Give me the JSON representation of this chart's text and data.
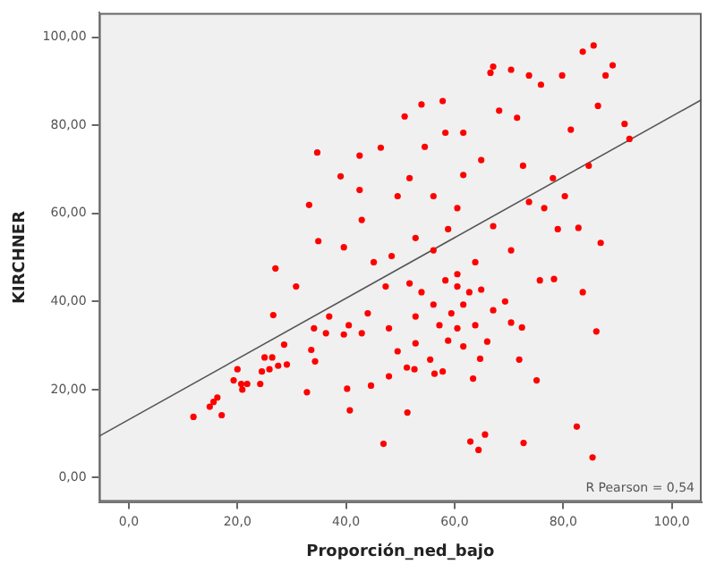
{
  "chart_data": {
    "type": "scatter",
    "xlabel": "Proporción_ned_bajo",
    "ylabel": "KIRCHNER",
    "xlim": [
      -5.5,
      105.5
    ],
    "ylim": [
      -5.5,
      105.5
    ],
    "xticks": [
      {
        "value": 0,
        "label": "0,0"
      },
      {
        "value": 20,
        "label": "20,0"
      },
      {
        "value": 40,
        "label": "40,0"
      },
      {
        "value": 60,
        "label": "60,0"
      },
      {
        "value": 80,
        "label": "80,0"
      },
      {
        "value": 100,
        "label": "100,0"
      }
    ],
    "yticks": [
      {
        "value": 0,
        "label": "0,00"
      },
      {
        "value": 20,
        "label": "20,00"
      },
      {
        "value": 40,
        "label": "40,00"
      },
      {
        "value": 60,
        "label": "60,00"
      },
      {
        "value": 80,
        "label": "80,00"
      },
      {
        "value": 100,
        "label": "100,00"
      }
    ],
    "grid": false,
    "legend": false,
    "annotations": [
      "R Pearson = 0,54"
    ],
    "series": [
      {
        "color": "#ff0000",
        "marker": "circle",
        "x": [
          11.9,
          14.9,
          15.6,
          16.3,
          17.1,
          19.3,
          20.0,
          20.7,
          20.9,
          21.8,
          24.2,
          24.5,
          25.0,
          25.9,
          26.4,
          27.5,
          28.6,
          29.1,
          26.6,
          30.8,
          32.8,
          33.6,
          34.1,
          34.3,
          36.3,
          36.9,
          40.2,
          40.7,
          39.6,
          40.5,
          42.9,
          44.0,
          44.6,
          46.9,
          47.9,
          47.9,
          49.5,
          51.3,
          51.2,
          52.6,
          52.8,
          55.5,
          56.3,
          57.8,
          58.8,
          62.9,
          63.4,
          64.4,
          65.6,
          64.7,
          66.0,
          69.3,
          70.4,
          71.9,
          72.4,
          72.7,
          75.1,
          75.7,
          78.3,
          82.5,
          83.6,
          85.4,
          86.1,
          27.0,
          34.7,
          33.2,
          34.9,
          39.0,
          42.5,
          42.5,
          46.4,
          50.8,
          53.9,
          57.8,
          54.5,
          58.3,
          61.6,
          61.6,
          60.5,
          56.1,
          51.7,
          49.5,
          52.8,
          56.1,
          58.8,
          64.9,
          66.6,
          67.1,
          70.4,
          68.2,
          71.5,
          73.7,
          75.9,
          79.8,
          83.6,
          85.6,
          89.1,
          87.8,
          86.4,
          91.3,
          92.2,
          81.4,
          84.7,
          78.1,
          80.3,
          72.6,
          73.7,
          76.5,
          79.0,
          86.9,
          82.8,
          70.4,
          67.1,
          63.8,
          48.4,
          42.9,
          39.6,
          45.1,
          60.5,
          58.3,
          60.5,
          62.7,
          64.9,
          61.6,
          59.4,
          56.1,
          53.9,
          51.7,
          67.1,
          63.8,
          60.5,
          61.6,
          57.2,
          52.8,
          47.3
        ],
        "values": [
          13.8,
          16.1,
          17.2,
          18.2,
          14.2,
          22.1,
          24.6,
          21.3,
          20.0,
          21.3,
          21.3,
          24.1,
          27.3,
          24.6,
          27.3,
          25.4,
          30.2,
          25.7,
          36.9,
          43.4,
          19.4,
          29.0,
          33.9,
          26.4,
          32.8,
          36.6,
          20.2,
          15.3,
          32.5,
          34.6,
          32.8,
          37.3,
          20.9,
          7.7,
          23.0,
          33.9,
          28.7,
          14.8,
          25.0,
          24.6,
          30.5,
          26.8,
          23.6,
          24.1,
          31.1,
          8.2,
          22.5,
          6.3,
          9.8,
          27.0,
          30.9,
          40.0,
          35.2,
          26.8,
          34.1,
          7.9,
          22.1,
          44.8,
          45.1,
          11.6,
          42.1,
          4.6,
          33.2,
          47.5,
          73.8,
          61.9,
          53.7,
          68.4,
          73.1,
          65.3,
          74.9,
          82.0,
          84.7,
          85.5,
          75.1,
          78.3,
          78.3,
          68.7,
          61.2,
          63.9,
          68.0,
          63.9,
          54.4,
          51.6,
          56.4,
          72.1,
          91.9,
          93.3,
          92.6,
          83.3,
          81.7,
          91.3,
          89.2,
          91.3,
          96.7,
          98.1,
          93.6,
          91.3,
          84.4,
          80.3,
          76.9,
          79.0,
          70.8,
          68.0,
          63.9,
          70.8,
          62.6,
          61.2,
          56.4,
          53.3,
          56.7,
          51.6,
          57.1,
          48.9,
          50.3,
          58.5,
          52.3,
          48.9,
          46.2,
          44.8,
          43.4,
          42.1,
          42.7,
          39.3,
          37.3,
          39.3,
          42.1,
          44.1,
          38.0,
          34.6,
          33.9,
          29.8,
          34.6,
          36.6,
          43.4
        ]
      },
      {
        "type": "line",
        "color": "#555555",
        "marker": "none",
        "line_style": "solid",
        "x": [
          -5.5,
          105.5
        ],
        "values": [
          9.4,
          85.8
        ]
      }
    ]
  }
}
